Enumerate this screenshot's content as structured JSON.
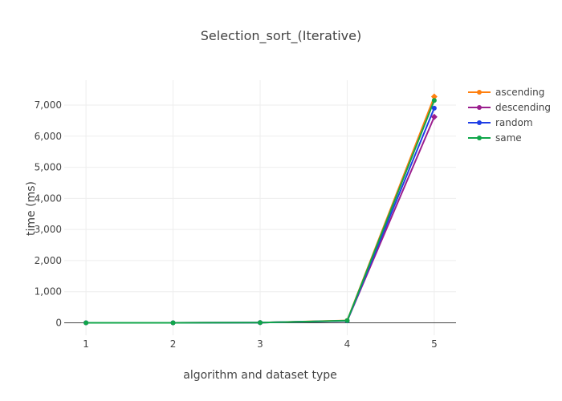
{
  "chart_data": {
    "type": "line",
    "title": "Selection_sort_(Iterative)",
    "xlabel": "algorithm and dataset type",
    "ylabel": "time (ms)",
    "x": [
      1,
      2,
      3,
      4,
      5
    ],
    "xticks": [
      "1",
      "2",
      "3",
      "4",
      "5"
    ],
    "xlim": [
      0.75,
      5.25
    ],
    "ylim": [
      -400,
      7800
    ],
    "yticks": [
      0,
      1000,
      2000,
      3000,
      4000,
      5000,
      6000,
      7000
    ],
    "ytick_labels": [
      "0",
      "1,000",
      "2,000",
      "3,000",
      "4,000",
      "5,000",
      "6,000",
      "7,000"
    ],
    "grid": true,
    "legend_position": "top-right",
    "series": [
      {
        "name": "ascending",
        "color": "#ff7f0e",
        "marker": "circle",
        "last_marker": "diamond",
        "values": [
          0,
          1,
          5,
          75,
          7270
        ]
      },
      {
        "name": "descending",
        "color": "#9b1f8e",
        "marker": "circle",
        "last_marker": "diamond",
        "values": [
          0,
          1,
          5,
          60,
          6620
        ]
      },
      {
        "name": "random",
        "color": "#1f3ee6",
        "marker": "circle",
        "last_marker": "circle",
        "values": [
          0,
          1,
          5,
          65,
          6900
        ]
      },
      {
        "name": "same",
        "color": "#10a64a",
        "marker": "circle",
        "last_marker": "circle",
        "values": [
          0,
          1,
          5,
          70,
          7150
        ]
      }
    ]
  }
}
